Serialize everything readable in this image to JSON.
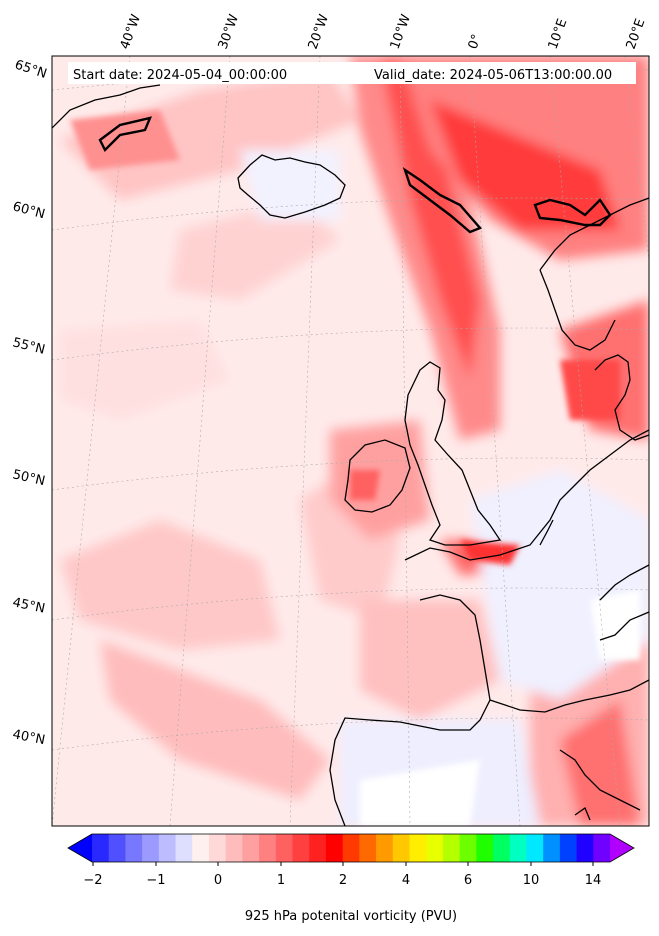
{
  "header": {
    "start_date": "Start date: 2024-05-04_00:00:00",
    "valid_date": "Valid_date: 2024-05-06T13:00:00.00"
  },
  "longitude_labels": [
    "40°W",
    "30°W",
    "20°W",
    "10°W",
    "0°",
    "10°E",
    "20°E"
  ],
  "latitude_labels": [
    "65°N",
    "60°N",
    "55°N",
    "50°N",
    "45°N",
    "40°N"
  ],
  "colorbar": {
    "title": "925 hPa potenital vorticity (PVU)",
    "tick_labels": [
      "−2",
      "−1",
      "0",
      "1",
      "2",
      "4",
      "6",
      "10",
      "14"
    ],
    "colors": [
      "#0000ff",
      "#2828ff",
      "#5050ff",
      "#7878ff",
      "#9a9aff",
      "#bcbcff",
      "#dedeff",
      "#fff0f0",
      "#ffd8d8",
      "#ffbcbc",
      "#ffa0a0",
      "#ff8080",
      "#ff6060",
      "#ff4040",
      "#ff2020",
      "#ff0000",
      "#ff3a00",
      "#ff6a00",
      "#ff9a00",
      "#ffc800",
      "#ffee00",
      "#e8ff00",
      "#b4ff00",
      "#6cff00",
      "#20ff00",
      "#00ff60",
      "#00ffc0",
      "#00e8ff",
      "#0090ff",
      "#0040ff",
      "#2000ff",
      "#7000ff",
      "#b000ff"
    ]
  }
}
